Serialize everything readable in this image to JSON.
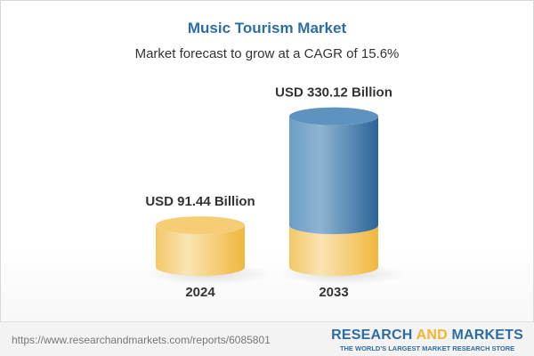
{
  "title": "Music Tourism Market",
  "subtitle": "Market forecast to grow at a CAGR of 15.6%",
  "chart_data": {
    "type": "bar",
    "style": "3d-cylinder",
    "categories": [
      "2024",
      "2033"
    ],
    "values": [
      91.44,
      330.12
    ],
    "data_labels": [
      "USD 91.44 Billion",
      "USD 330.12 Billion"
    ],
    "unit": "USD Billion",
    "colors": {
      "base": "#f2c35a",
      "growth": "#3f7db3"
    }
  },
  "footer": {
    "url": "https://www.researchandmarkets.com/reports/6085801",
    "logo_part1": "RESEARCH ",
    "logo_part2": "AND",
    "logo_part3": " MARKETS",
    "tagline": "THE WORLD'S LARGEST MARKET RESEARCH STORE"
  }
}
